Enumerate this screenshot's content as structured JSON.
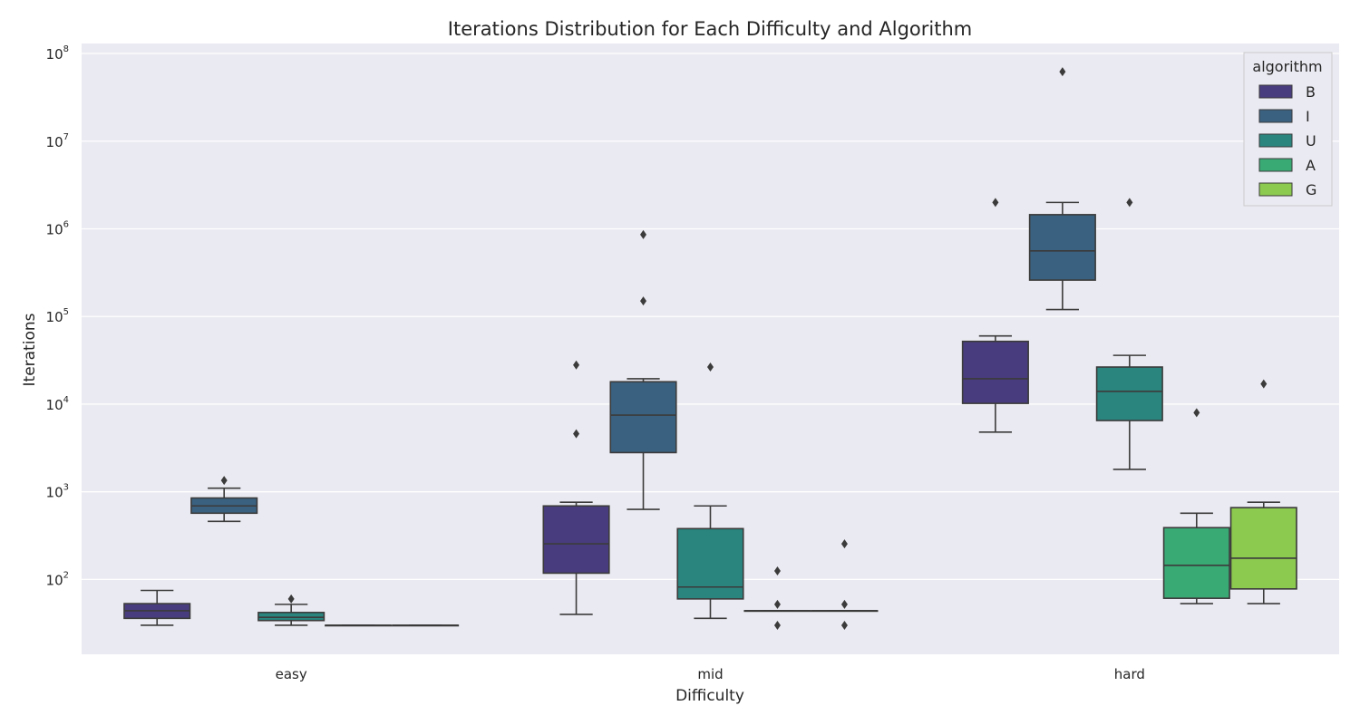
{
  "chart_data": {
    "type": "box",
    "title": "Iterations Distribution for Each Difficulty and Algorithm",
    "xlabel": "Difficulty",
    "ylabel": "Iterations",
    "yscale": "log",
    "ylim": [
      14,
      130000000
    ],
    "yticks": [
      {
        "value": 100,
        "base": "10",
        "exp": "2"
      },
      {
        "value": 1000,
        "base": "10",
        "exp": "3"
      },
      {
        "value": 10000,
        "base": "10",
        "exp": "4"
      },
      {
        "value": 100000,
        "base": "10",
        "exp": "5"
      },
      {
        "value": 1000000,
        "base": "10",
        "exp": "6"
      },
      {
        "value": 10000000,
        "base": "10",
        "exp": "7"
      },
      {
        "value": 100000000,
        "base": "10",
        "exp": "8"
      }
    ],
    "grid": true,
    "categories": [
      "easy",
      "mid",
      "hard"
    ],
    "legend": {
      "title": "algorithm",
      "placement": "top-right"
    },
    "series": [
      {
        "name": "B",
        "color": "#493c7e",
        "boxes": [
          {
            "whislo": 30,
            "q1": 36,
            "med": 44,
            "q3": 53,
            "whishi": 75,
            "fliers": []
          },
          {
            "whislo": 40,
            "q1": 118,
            "med": 255,
            "q3": 690,
            "whishi": 760,
            "fliers": [
              4600,
              28000
            ]
          },
          {
            "whislo": 4800,
            "q1": 10200,
            "med": 19500,
            "q3": 52000,
            "whishi": 60000,
            "fliers": [
              2000000
            ]
          }
        ]
      },
      {
        "name": "I",
        "color": "#3a617f",
        "boxes": [
          {
            "whislo": 460,
            "q1": 570,
            "med": 690,
            "q3": 850,
            "whishi": 1100,
            "fliers": [
              1350
            ]
          },
          {
            "whislo": 630,
            "q1": 2800,
            "med": 7500,
            "q3": 18000,
            "whishi": 19500,
            "fliers": [
              150000,
              860000
            ]
          },
          {
            "whislo": 120000,
            "q1": 260000,
            "med": 560000,
            "q3": 1450000,
            "whishi": 2000000,
            "fliers": [
              62000000
            ]
          }
        ]
      },
      {
        "name": "U",
        "color": "#2a857f",
        "boxes": [
          {
            "whislo": 30,
            "q1": 34,
            "med": 37,
            "q3": 42,
            "whishi": 52,
            "fliers": [
              60
            ]
          },
          {
            "whislo": 36,
            "q1": 60,
            "med": 82,
            "q3": 380,
            "whishi": 690,
            "fliers": [
              26500
            ]
          },
          {
            "whislo": 1800,
            "q1": 6500,
            "med": 14000,
            "q3": 26500,
            "whishi": 36000,
            "fliers": [
              2000000
            ]
          }
        ]
      },
      {
        "name": "A",
        "color": "#3aaa75",
        "boxes": [
          {
            "whislo": 30,
            "q1": 30,
            "med": 30,
            "q3": 30,
            "whishi": 30,
            "fliers": []
          },
          {
            "whislo": 44,
            "q1": 44,
            "med": 44,
            "q3": 44,
            "whishi": 44,
            "fliers": [
              30,
              52,
              125
            ]
          },
          {
            "whislo": 53,
            "q1": 61,
            "med": 145,
            "q3": 390,
            "whishi": 570,
            "fliers": [
              8000
            ]
          }
        ]
      },
      {
        "name": "G",
        "color": "#8cc94f",
        "boxes": [
          {
            "whislo": 30,
            "q1": 30,
            "med": 30,
            "q3": 30,
            "whishi": 30,
            "fliers": []
          },
          {
            "whislo": 44,
            "q1": 44,
            "med": 44,
            "q3": 44,
            "whishi": 44,
            "fliers": [
              30,
              52,
              255
            ]
          },
          {
            "whislo": 53,
            "q1": 78,
            "med": 175,
            "q3": 660,
            "whishi": 760,
            "fliers": [
              17000
            ]
          }
        ]
      }
    ]
  }
}
